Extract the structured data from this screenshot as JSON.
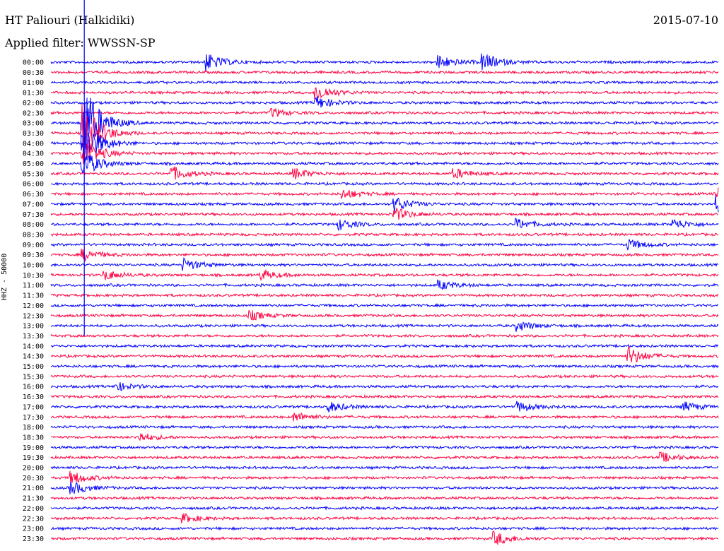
{
  "header": {
    "station": "HT Paliouri (Halkidiki)",
    "date": "2015-07-10",
    "filter": "Applied filter: WWSSN-SP",
    "channel": "HHZ - 50000"
  },
  "colors": {
    "odd_trace": "#0000ff",
    "even_trace": "#ff0040",
    "text": "#000000",
    "background": "#ffffff"
  },
  "chart_data": {
    "type": "line",
    "title": "HT Paliouri (Halkidiki)",
    "subtitle": "Applied filter: WWSSN-SP",
    "ylabel": "HHZ - 50000",
    "rows": [
      "00:00",
      "00:30",
      "01:00",
      "01:30",
      "02:00",
      "02:30",
      "03:00",
      "03:30",
      "04:00",
      "04:30",
      "05:00",
      "05:30",
      "06:00",
      "06:30",
      "07:00",
      "07:30",
      "08:00",
      "08:30",
      "09:00",
      "09:30",
      "10:00",
      "10:30",
      "11:00",
      "11:30",
      "12:00",
      "12:30",
      "13:00",
      "13:30",
      "14:00",
      "14:30",
      "15:00",
      "15:30",
      "16:00",
      "16:30",
      "17:00",
      "17:30",
      "18:00",
      "18:30",
      "19:00",
      "19:30",
      "20:00",
      "20:30",
      "21:00",
      "21:30",
      "22:00",
      "22:30",
      "23:00",
      "23:30"
    ],
    "row_minutes": 30,
    "alternating_colors": [
      "#0000ff",
      "#ff0040"
    ],
    "events": [
      {
        "row": 0,
        "minute": 7.0,
        "amp": 1.8
      },
      {
        "row": 0,
        "minute": 17.5,
        "amp": 1.3
      },
      {
        "row": 0,
        "minute": 19.5,
        "amp": 1.6
      },
      {
        "row": 3,
        "minute": 12.0,
        "amp": 1.6
      },
      {
        "row": 4,
        "minute": 12.0,
        "amp": 1.2
      },
      {
        "row": 5,
        "minute": 10.0,
        "amp": 0.8
      },
      {
        "row": 6,
        "minute": 1.5,
        "amp": 8.0
      },
      {
        "row": 7,
        "minute": 1.5,
        "amp": 6.0
      },
      {
        "row": 8,
        "minute": 1.5,
        "amp": 5.0
      },
      {
        "row": 9,
        "minute": 1.5,
        "amp": 3.0
      },
      {
        "row": 10,
        "minute": 1.5,
        "amp": 2.5
      },
      {
        "row": 11,
        "minute": 5.5,
        "amp": 1.3
      },
      {
        "row": 11,
        "minute": 11.0,
        "amp": 1.0
      },
      {
        "row": 11,
        "minute": 18.2,
        "amp": 0.9
      },
      {
        "row": 13,
        "minute": 13.2,
        "amp": 0.9
      },
      {
        "row": 13,
        "minute": 30.0,
        "amp": 1.2
      },
      {
        "row": 14,
        "minute": 15.5,
        "amp": 1.4
      },
      {
        "row": 14,
        "minute": 30.0,
        "amp": 1.6
      },
      {
        "row": 15,
        "minute": 15.5,
        "amp": 1.2
      },
      {
        "row": 16,
        "minute": 13.0,
        "amp": 1.0
      },
      {
        "row": 16,
        "minute": 21.0,
        "amp": 1.0
      },
      {
        "row": 16,
        "minute": 28.0,
        "amp": 1.0
      },
      {
        "row": 18,
        "minute": 26.0,
        "amp": 1.0
      },
      {
        "row": 19,
        "minute": 1.5,
        "amp": 1.1
      },
      {
        "row": 20,
        "minute": 6.0,
        "amp": 1.2
      },
      {
        "row": 21,
        "minute": 2.5,
        "amp": 0.9
      },
      {
        "row": 21,
        "minute": 9.5,
        "amp": 0.9
      },
      {
        "row": 22,
        "minute": 17.5,
        "amp": 0.9
      },
      {
        "row": 25,
        "minute": 9.0,
        "amp": 0.9
      },
      {
        "row": 26,
        "minute": 21.0,
        "amp": 1.0
      },
      {
        "row": 29,
        "minute": 26.0,
        "amp": 1.8
      },
      {
        "row": 32,
        "minute": 3.0,
        "amp": 0.8
      },
      {
        "row": 34,
        "minute": 12.5,
        "amp": 1.0
      },
      {
        "row": 34,
        "minute": 21.0,
        "amp": 1.0
      },
      {
        "row": 34,
        "minute": 28.5,
        "amp": 0.9
      },
      {
        "row": 35,
        "minute": 11.0,
        "amp": 0.9
      },
      {
        "row": 37,
        "minute": 4.0,
        "amp": 0.9
      },
      {
        "row": 39,
        "minute": 27.5,
        "amp": 0.9
      },
      {
        "row": 41,
        "minute": 1.0,
        "amp": 1.2
      },
      {
        "row": 42,
        "minute": 1.0,
        "amp": 1.2
      },
      {
        "row": 45,
        "minute": 6.0,
        "amp": 0.8
      },
      {
        "row": 47,
        "minute": 20.0,
        "amp": 1.3
      }
    ]
  }
}
